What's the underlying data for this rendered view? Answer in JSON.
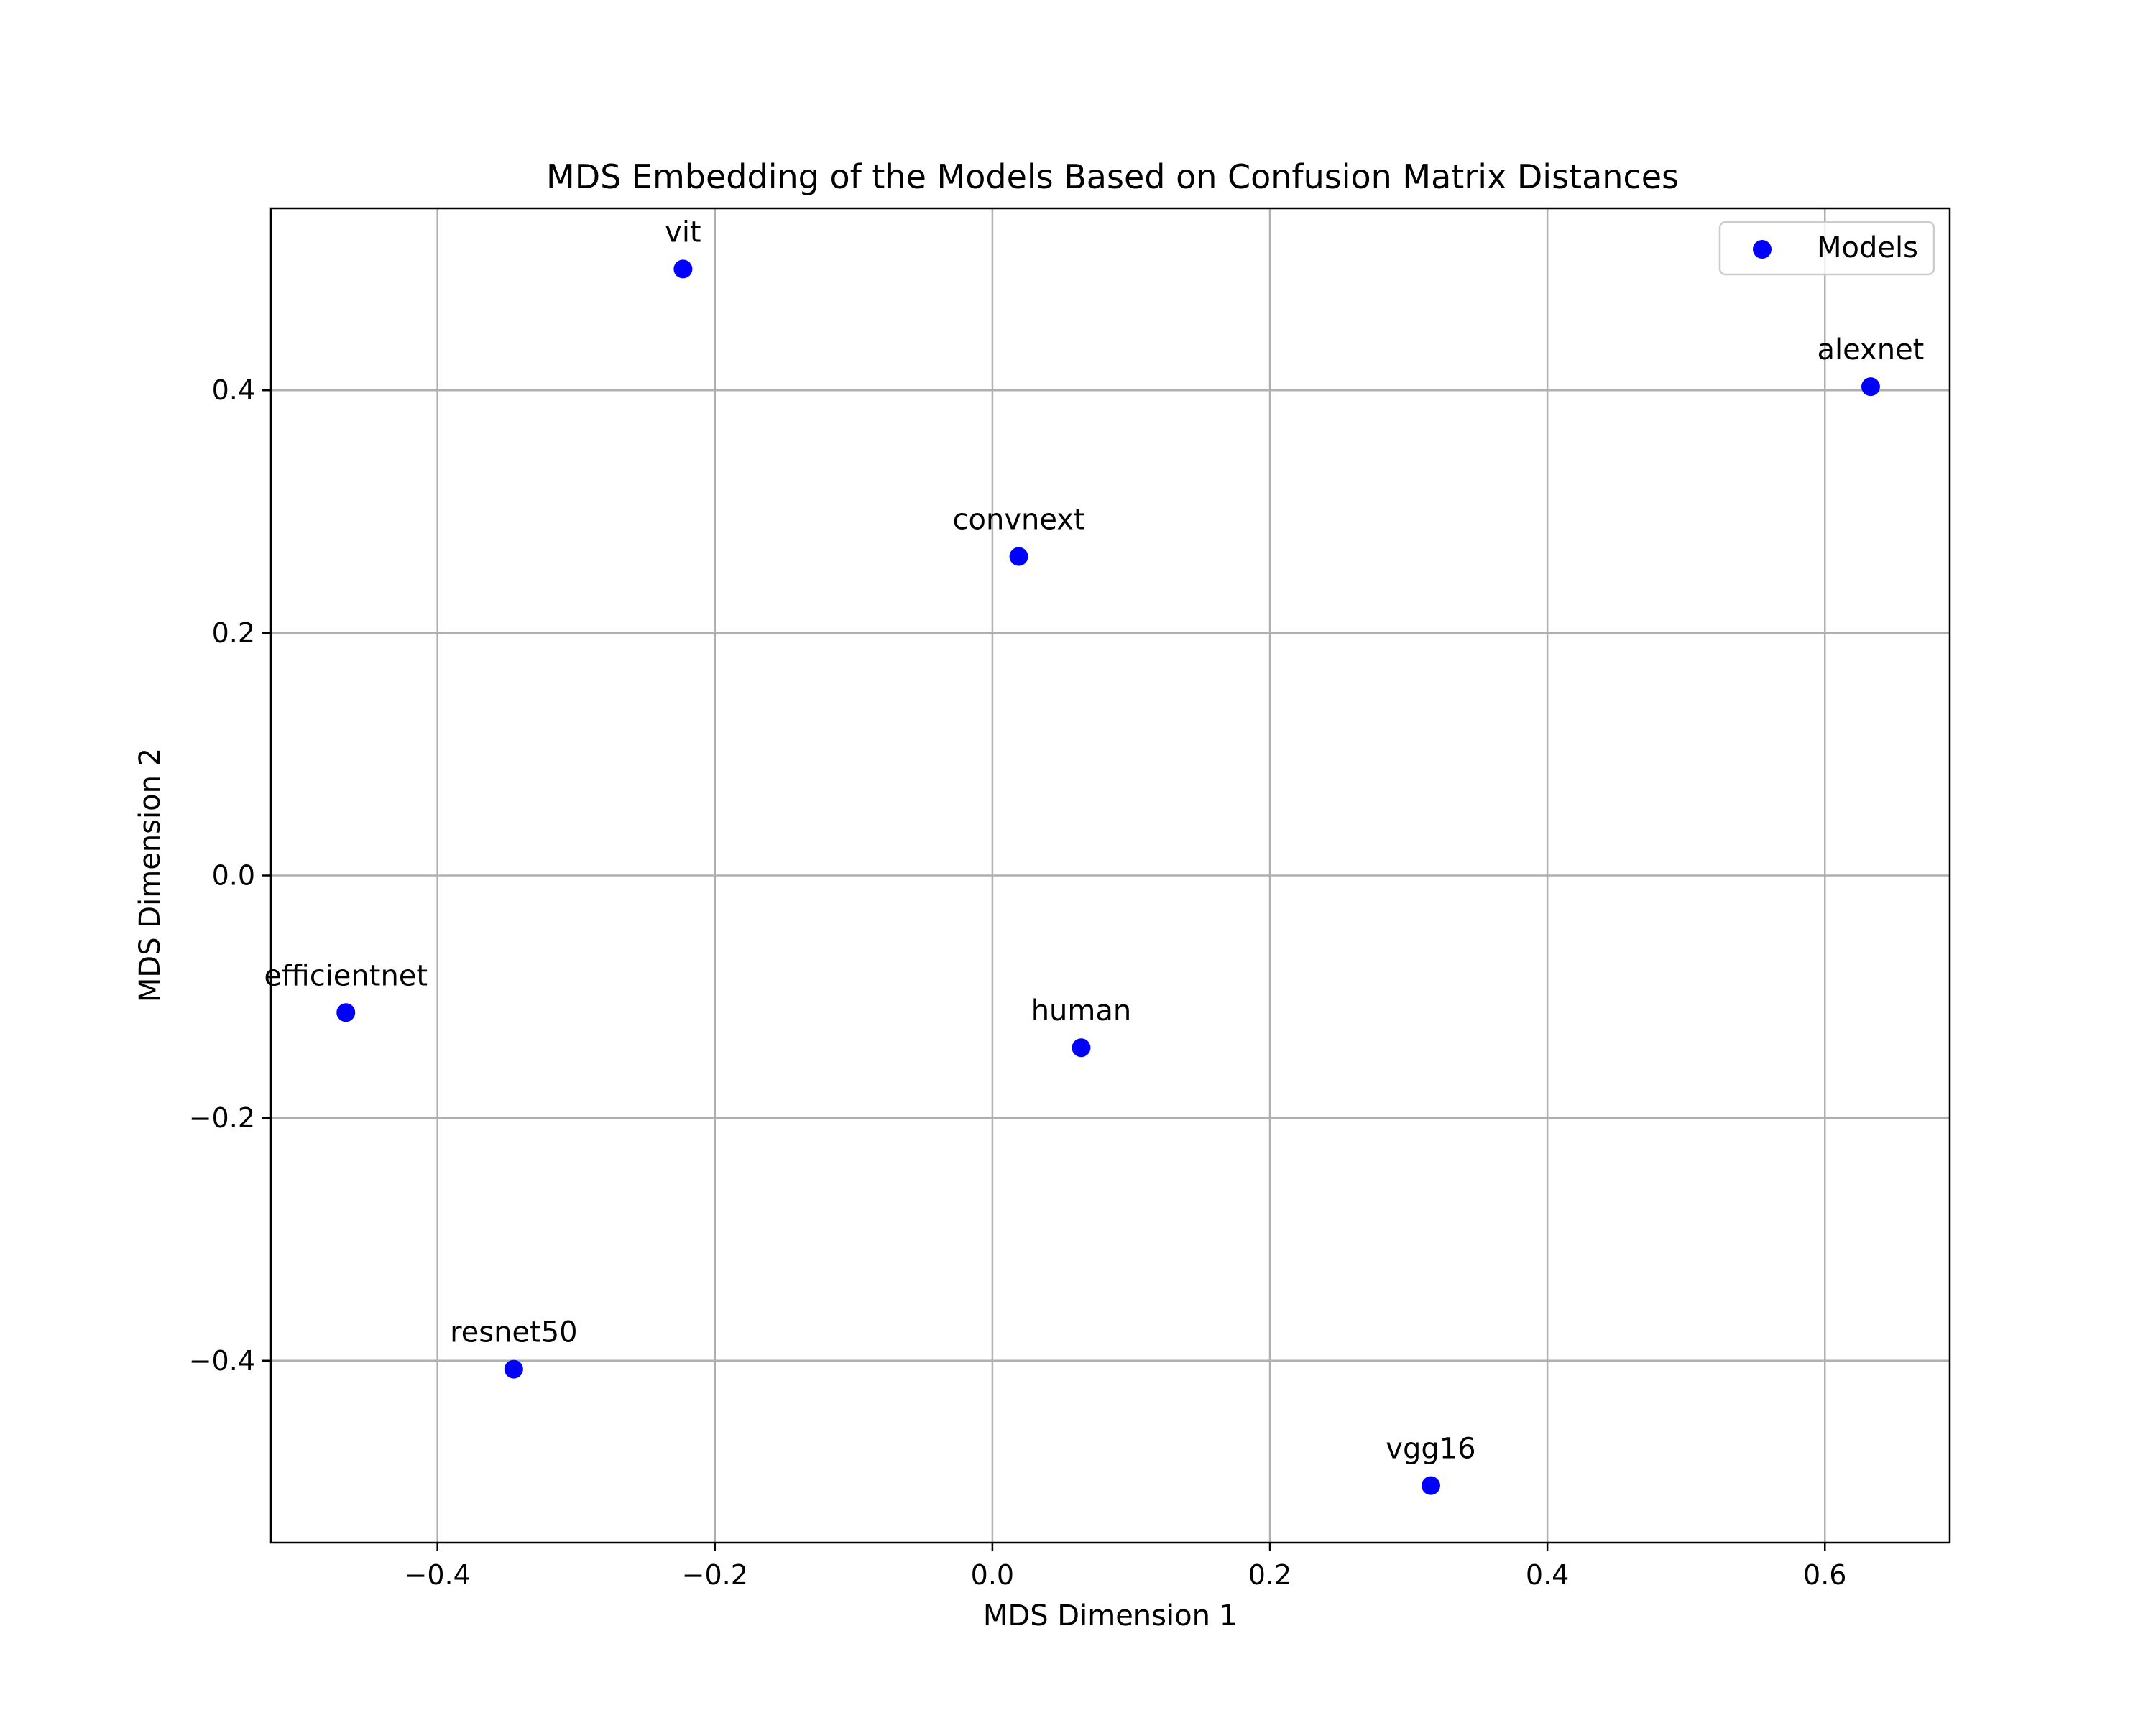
{
  "chart_data": {
    "type": "scatter",
    "title": "MDS Embedding of the Models Based on Confusion Matrix Distances",
    "xlabel": "MDS Dimension 1",
    "ylabel": "MDS Dimension 2",
    "xlim": [
      -0.52,
      0.69
    ],
    "ylim": [
      -0.55,
      0.55
    ],
    "xticks": [
      -0.4,
      -0.2,
      0.0,
      0.2,
      0.4,
      0.6
    ],
    "xtick_labels": [
      "−0.4",
      "−0.2",
      "0.0",
      "0.2",
      "0.4",
      "0.6"
    ],
    "yticks": [
      -0.4,
      -0.2,
      0.0,
      0.2,
      0.4
    ],
    "ytick_labels": [
      "−0.4",
      "−0.2",
      "0.0",
      "0.2",
      "0.4"
    ],
    "grid": true,
    "legend_position": "top-right",
    "series": [
      {
        "name": "Models",
        "color": "#0000ff",
        "points": [
          {
            "label": "vit",
            "x": -0.223,
            "y": 0.5
          },
          {
            "label": "alexnet",
            "x": 0.633,
            "y": 0.403
          },
          {
            "label": "convnext",
            "x": 0.019,
            "y": 0.263
          },
          {
            "label": "efficientnet",
            "x": -0.466,
            "y": -0.113
          },
          {
            "label": "human",
            "x": 0.064,
            "y": -0.142
          },
          {
            "label": "resnet50",
            "x": -0.345,
            "y": -0.407
          },
          {
            "label": "vgg16",
            "x": 0.316,
            "y": -0.503
          }
        ]
      }
    ]
  }
}
